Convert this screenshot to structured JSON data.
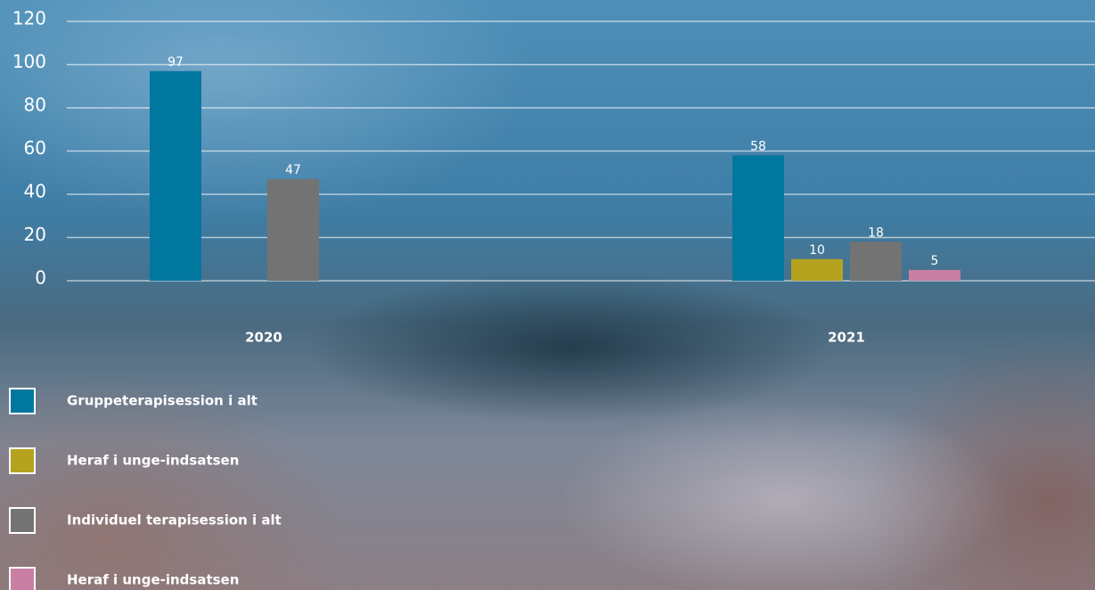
{
  "chart_data": {
    "type": "bar",
    "categories": [
      "2020",
      "2021"
    ],
    "series": [
      {
        "name": "Gruppeterapisession i alt",
        "color": "#00779e",
        "values": [
          97,
          58
        ]
      },
      {
        "name": "Heraf i unge-indsatsen",
        "color": "#b5a21f",
        "values": [
          null,
          10
        ]
      },
      {
        "name": "Individuel terapisession i alt",
        "color": "#737373",
        "values": [
          47,
          18
        ]
      },
      {
        "name": "Heraf i unge-indsatsen",
        "color": "#c87fa3",
        "values": [
          null,
          5
        ]
      }
    ],
    "ylim": [
      0,
      120
    ],
    "yticks": [
      0,
      20,
      40,
      60,
      80,
      100,
      120
    ],
    "grid": true
  }
}
